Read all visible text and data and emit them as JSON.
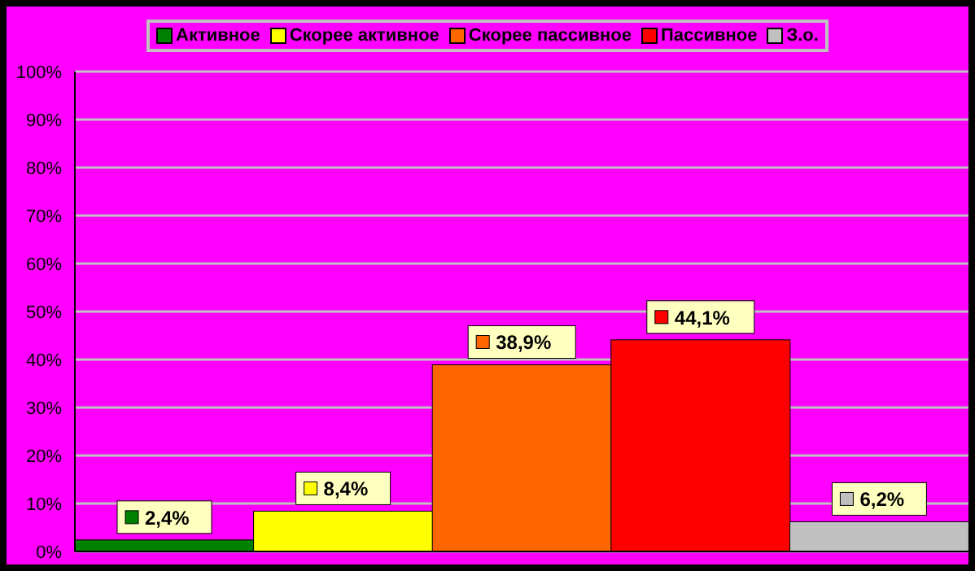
{
  "chart_data": {
    "type": "bar",
    "stacked": true,
    "categories": [
      null,
      null,
      null,
      null,
      null
    ],
    "series": [
      {
        "name": "Активное",
        "color": "#008000",
        "values": [
          2.4,
          null,
          null,
          null,
          null
        ],
        "value_labels": [
          "2,4%",
          null,
          null,
          null,
          null
        ]
      },
      {
        "name": "Скорее активное",
        "color": "#ffff00",
        "values": [
          null,
          8.4,
          null,
          null,
          null
        ],
        "value_labels": [
          null,
          "8,4%",
          null,
          null,
          null
        ]
      },
      {
        "name": "Скорее пассивное",
        "color": "#ff6600",
        "values": [
          null,
          null,
          38.9,
          null,
          null
        ],
        "value_labels": [
          null,
          null,
          "38,9%",
          null,
          null
        ]
      },
      {
        "name": "Пассивное",
        "color": "#ff0000",
        "values": [
          null,
          null,
          null,
          44.1,
          null
        ],
        "value_labels": [
          null,
          null,
          null,
          "44,1%",
          null
        ]
      },
      {
        "name": "З.о.",
        "color": "#c0c0c0",
        "values": [
          null,
          null,
          null,
          null,
          6.2
        ],
        "value_labels": [
          null,
          null,
          null,
          null,
          "6,2%"
        ]
      }
    ],
    "ylim": [
      0,
      100
    ],
    "yticks": [
      {
        "value": 0,
        "label": "0%"
      },
      {
        "value": 10,
        "label": "10%"
      },
      {
        "value": 20,
        "label": "20%"
      },
      {
        "value": 30,
        "label": "30%"
      },
      {
        "value": 40,
        "label": "40%"
      },
      {
        "value": 50,
        "label": "50%"
      },
      {
        "value": 60,
        "label": "60%"
      },
      {
        "value": 70,
        "label": "70%"
      },
      {
        "value": 80,
        "label": "80%"
      },
      {
        "value": 90,
        "label": "90%"
      },
      {
        "value": 100,
        "label": "100%"
      }
    ],
    "grid": "y",
    "legend": "top"
  }
}
